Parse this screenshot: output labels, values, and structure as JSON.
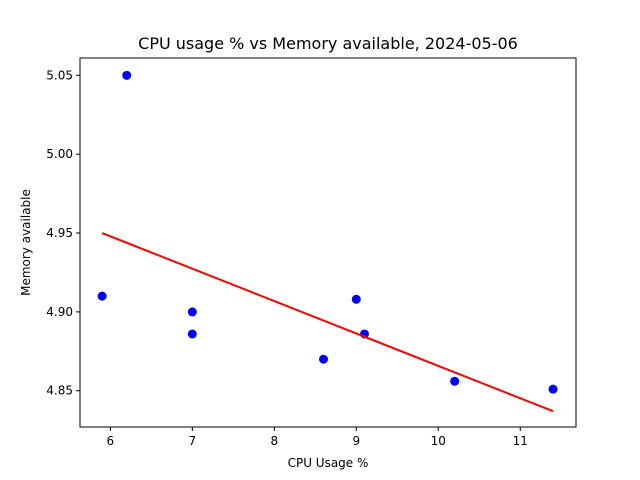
{
  "chart_data": {
    "type": "scatter",
    "title": "CPU usage % vs Memory available, 2024-05-06",
    "xlabel": "CPU Usage %",
    "ylabel": "Memory available",
    "xlim": [
      5.63,
      11.68
    ],
    "ylim": [
      4.827,
      5.061
    ],
    "xticks": [
      6,
      7,
      8,
      9,
      10,
      11
    ],
    "yticks": [
      4.85,
      4.9,
      4.95,
      5.0,
      5.05
    ],
    "ytick_labels": [
      "4.85",
      "4.90",
      "4.95",
      "5.00",
      "5.05"
    ],
    "grid": false,
    "points": [
      {
        "x": 5.9,
        "y": 4.91
      },
      {
        "x": 6.2,
        "y": 5.05
      },
      {
        "x": 7.0,
        "y": 4.9
      },
      {
        "x": 7.0,
        "y": 4.886
      },
      {
        "x": 8.6,
        "y": 4.87
      },
      {
        "x": 9.0,
        "y": 4.908
      },
      {
        "x": 9.1,
        "y": 4.886
      },
      {
        "x": 10.2,
        "y": 4.856
      },
      {
        "x": 11.4,
        "y": 4.851
      }
    ],
    "trend_line": {
      "x": [
        5.9,
        11.4
      ],
      "y": [
        4.95,
        4.837
      ]
    },
    "colors": {
      "points": "#0000ff",
      "trend": "#ff0000"
    }
  }
}
